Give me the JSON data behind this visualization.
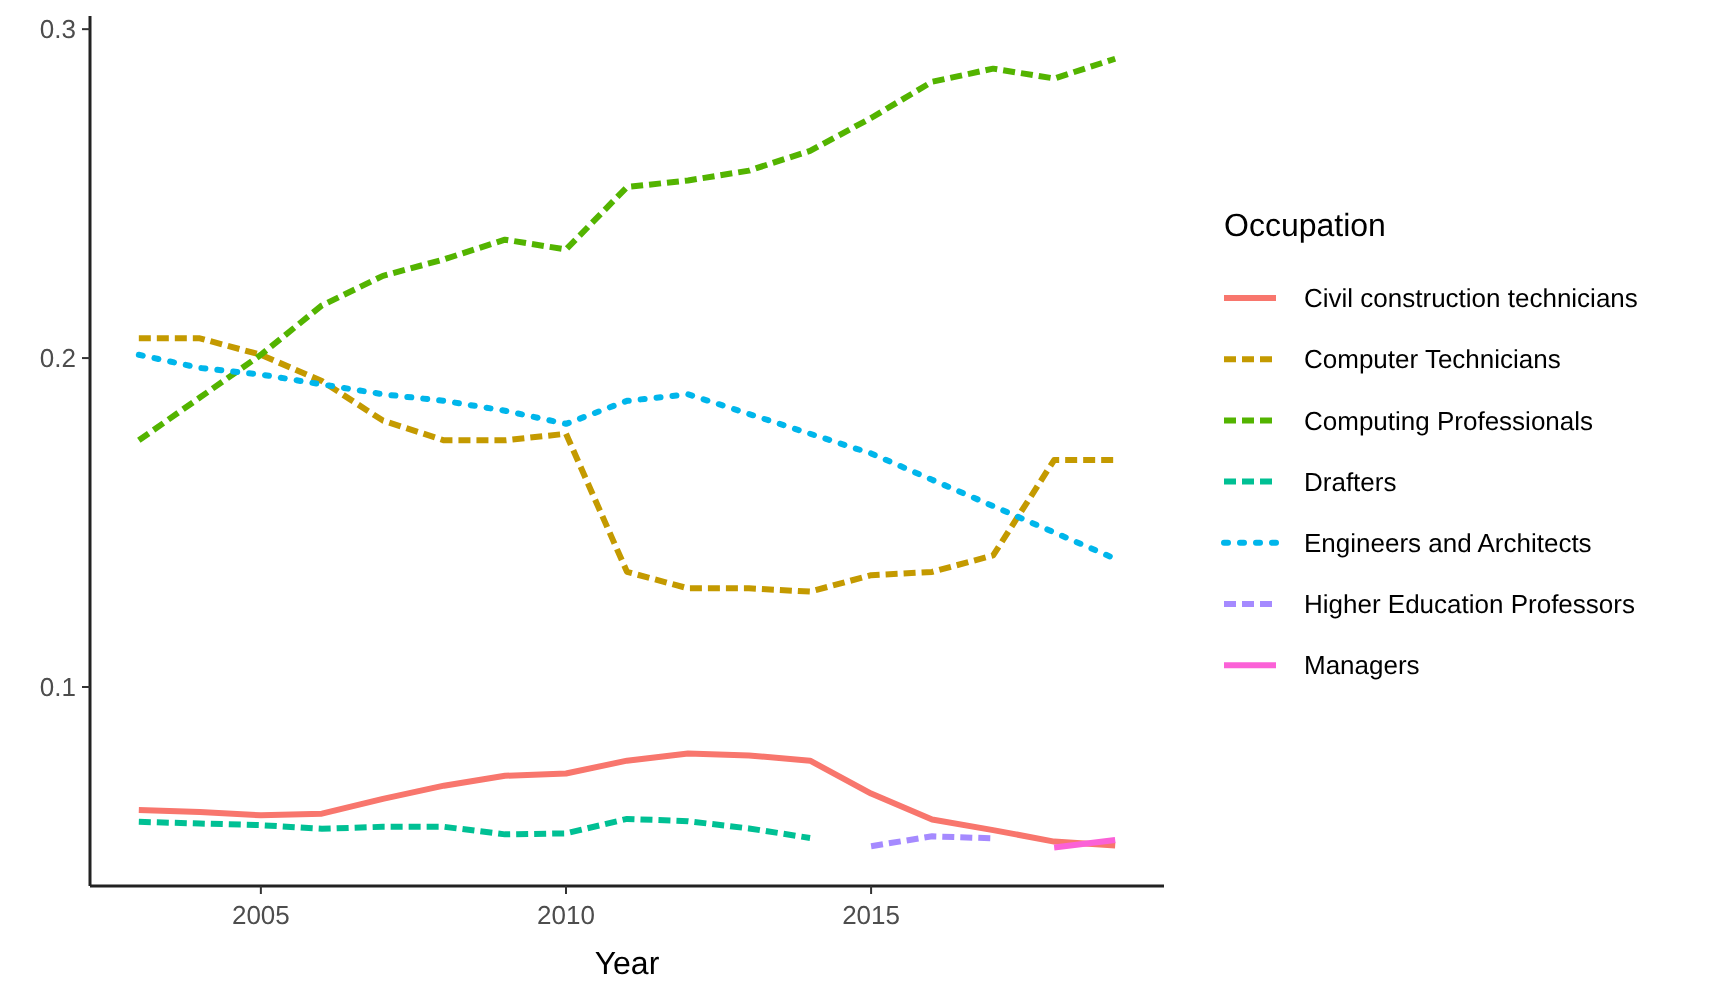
{
  "chart_data": {
    "type": "line",
    "xlabel": "Year",
    "legend_title": "Occupation",
    "legend": "right",
    "grid": false,
    "x": [
      2003,
      2004,
      2005,
      2006,
      2007,
      2008,
      2009,
      2010,
      2011,
      2012,
      2013,
      2014,
      2015,
      2016,
      2017,
      2018,
      2019
    ],
    "xlim": [
      2002.2,
      2019.8
    ],
    "xticks": [
      2005,
      2010,
      2015
    ],
    "ylim": [
      0.0395,
      0.304
    ],
    "yticks": [
      0.1,
      0.2,
      0.3
    ],
    "series": [
      {
        "name": "Civil construction technicians",
        "color": "#F8766D",
        "line_style": "solid",
        "values": [
          0.0626,
          0.062,
          0.061,
          0.0615,
          0.066,
          0.07,
          0.073,
          0.0737,
          0.0776,
          0.0798,
          0.0792,
          0.0776,
          0.0676,
          0.0597,
          0.0565,
          0.053,
          0.0518
        ]
      },
      {
        "name": "Computer Technicians",
        "color": "#C49A00",
        "line_style": "dashed",
        "values": [
          0.206,
          0.206,
          0.201,
          0.193,
          0.181,
          0.175,
          0.175,
          0.177,
          0.135,
          0.13,
          0.13,
          0.129,
          0.134,
          0.135,
          0.14,
          0.169,
          0.169
        ]
      },
      {
        "name": "Computing Professionals",
        "color": "#53B400",
        "line_style": "dashed",
        "values": [
          0.175,
          0.188,
          0.201,
          0.216,
          0.225,
          0.23,
          0.236,
          0.233,
          0.252,
          0.254,
          0.257,
          0.263,
          0.273,
          0.284,
          0.288,
          0.285,
          0.291
        ]
      },
      {
        "name": "Drafters",
        "color": "#00C094",
        "line_style": "dashed",
        "values": [
          0.059,
          0.0585,
          0.058,
          0.0569,
          0.0575,
          0.0575,
          0.0552,
          0.0555,
          0.0599,
          0.0592,
          0.057,
          0.0541,
          null,
          null,
          null,
          null,
          null
        ]
      },
      {
        "name": "Engineers and Architects",
        "color": "#00B6EB",
        "line_style": "dotted",
        "values": [
          0.201,
          0.197,
          0.195,
          0.192,
          0.189,
          0.187,
          0.184,
          0.18,
          0.187,
          0.189,
          0.183,
          0.177,
          0.171,
          0.163,
          0.155,
          0.147,
          0.139
        ]
      },
      {
        "name": "Higher Education Professors",
        "color": "#A58AFF",
        "line_style": "dashed",
        "values": [
          null,
          null,
          null,
          null,
          null,
          null,
          null,
          null,
          null,
          null,
          null,
          null,
          0.0516,
          0.0546,
          0.054,
          null,
          null
        ]
      },
      {
        "name": "Managers",
        "color": "#FB61D7",
        "line_style": "solid",
        "values": [
          null,
          null,
          null,
          null,
          null,
          null,
          null,
          null,
          null,
          null,
          null,
          null,
          null,
          null,
          null,
          0.0512,
          0.0535
        ]
      }
    ]
  }
}
